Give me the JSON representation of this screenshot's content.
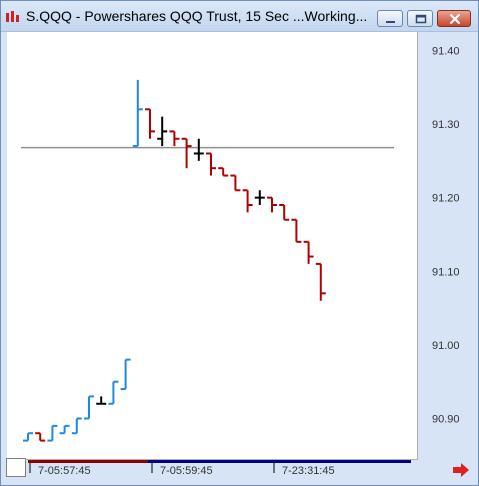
{
  "window": {
    "title": "S.QQQ - Powershares QQQ Trust, 15 Sec ...Working..."
  },
  "colors": {
    "up": "#1e88e5",
    "down": "#b00000",
    "neutral": "#000000",
    "reference_line": "#909090",
    "axis_text": "#333333",
    "time_strip_left": "#8b0000",
    "time_strip_right": "#00008b"
  },
  "icons": {
    "app": "chart-app-icon",
    "minimize": "minimize-icon",
    "maximize": "maximize-icon",
    "close": "close-icon",
    "scroll": "red-right-arrow-icon"
  },
  "chart_data": {
    "type": "bar",
    "title": "",
    "xlabel": "",
    "ylabel": "",
    "ylim": [
      90.845,
      91.425
    ],
    "yticks": [
      {
        "value": 91.4,
        "label": "91.40"
      },
      {
        "value": 91.3,
        "label": "91.30"
      },
      {
        "value": 91.2,
        "label": "91.20"
      },
      {
        "value": 91.1,
        "label": "91.10"
      },
      {
        "value": 91.0,
        "label": "91.00"
      },
      {
        "value": 90.9,
        "label": "90.90"
      }
    ],
    "xticks": [
      {
        "bar_index": 0,
        "label": "7-05:57:45"
      },
      {
        "bar_index": 10,
        "label": "7-05:59:45"
      },
      {
        "bar_index": 20,
        "label": "7-23:31:45"
      }
    ],
    "reference_line": {
      "value": 91.268
    },
    "grid": false,
    "legend": "none",
    "bars": [
      {
        "o": 90.87,
        "h": 90.88,
        "l": 90.87,
        "c": 90.88,
        "dir": "up"
      },
      {
        "o": 90.88,
        "h": 90.88,
        "l": 90.87,
        "c": 90.87,
        "dir": "down"
      },
      {
        "o": 90.87,
        "h": 90.89,
        "l": 90.87,
        "c": 90.89,
        "dir": "up"
      },
      {
        "o": 90.88,
        "h": 90.89,
        "l": 90.88,
        "c": 90.89,
        "dir": "up"
      },
      {
        "o": 90.88,
        "h": 90.9,
        "l": 90.88,
        "c": 90.9,
        "dir": "up"
      },
      {
        "o": 90.9,
        "h": 90.93,
        "l": 90.9,
        "c": 90.93,
        "dir": "up"
      },
      {
        "o": 90.92,
        "h": 90.93,
        "l": 90.92,
        "c": 90.92,
        "dir": "neutral"
      },
      {
        "o": 90.92,
        "h": 90.95,
        "l": 90.92,
        "c": 90.95,
        "dir": "up"
      },
      {
        "o": 90.94,
        "h": 90.98,
        "l": 90.94,
        "c": 90.98,
        "dir": "up"
      },
      {
        "o": 91.27,
        "h": 91.36,
        "l": 91.27,
        "c": 91.32,
        "dir": "up"
      },
      {
        "o": 91.32,
        "h": 91.32,
        "l": 91.28,
        "c": 91.29,
        "dir": "down"
      },
      {
        "o": 91.28,
        "h": 91.31,
        "l": 91.27,
        "c": 91.29,
        "dir": "neutral"
      },
      {
        "o": 91.29,
        "h": 91.29,
        "l": 91.27,
        "c": 91.28,
        "dir": "down"
      },
      {
        "o": 91.28,
        "h": 91.28,
        "l": 91.24,
        "c": 91.27,
        "dir": "down"
      },
      {
        "o": 91.26,
        "h": 91.28,
        "l": 91.25,
        "c": 91.26,
        "dir": "neutral"
      },
      {
        "o": 91.26,
        "h": 91.26,
        "l": 91.23,
        "c": 91.24,
        "dir": "down"
      },
      {
        "o": 91.24,
        "h": 91.24,
        "l": 91.23,
        "c": 91.23,
        "dir": "down"
      },
      {
        "o": 91.23,
        "h": 91.23,
        "l": 91.21,
        "c": 91.21,
        "dir": "down"
      },
      {
        "o": 91.21,
        "h": 91.21,
        "l": 91.18,
        "c": 91.19,
        "dir": "down"
      },
      {
        "o": 91.2,
        "h": 91.21,
        "l": 91.19,
        "c": 91.2,
        "dir": "neutral"
      },
      {
        "o": 91.2,
        "h": 91.2,
        "l": 91.18,
        "c": 91.19,
        "dir": "down"
      },
      {
        "o": 91.19,
        "h": 91.19,
        "l": 91.17,
        "c": 91.17,
        "dir": "down"
      },
      {
        "o": 91.17,
        "h": 91.17,
        "l": 91.14,
        "c": 91.14,
        "dir": "down"
      },
      {
        "o": 91.14,
        "h": 91.14,
        "l": 91.11,
        "c": 91.12,
        "dir": "down"
      },
      {
        "o": 91.11,
        "h": 91.11,
        "l": 91.06,
        "c": 91.07,
        "dir": "down"
      }
    ]
  }
}
